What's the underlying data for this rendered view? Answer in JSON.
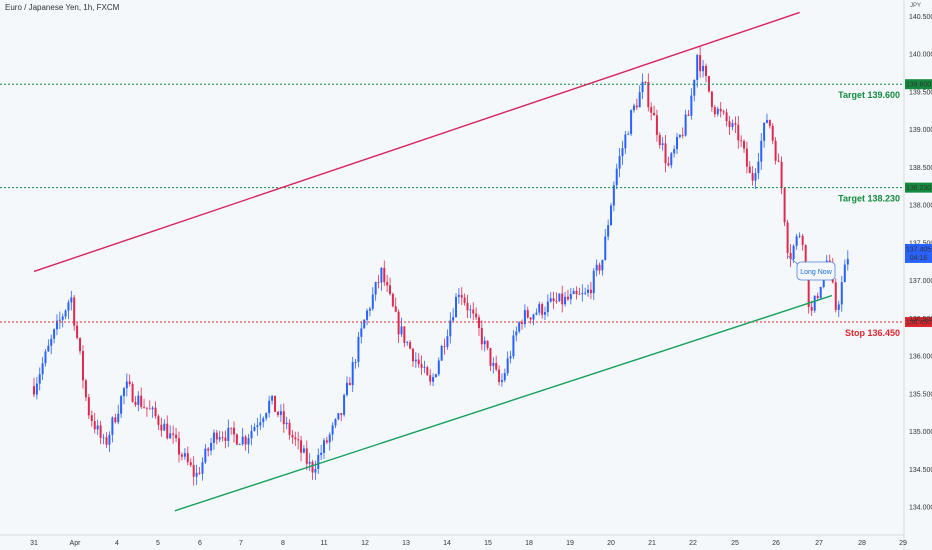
{
  "header": {
    "title": "Euro / Japanese Yen, 1h, FXCM",
    "currency": "JPY"
  },
  "chart_data": {
    "type": "candlestick",
    "y_axis": {
      "ticks": [
        "140.500",
        "140.000",
        "139.500",
        "139.000",
        "138.500",
        "138.000",
        "137.500",
        "137.000",
        "136.500",
        "136.000",
        "135.500",
        "135.000",
        "134.500",
        "134.000"
      ],
      "range": [
        133.9,
        140.65
      ]
    },
    "x_axis": {
      "ticks": [
        "31",
        "Apr",
        "4",
        "5",
        "6",
        "7",
        "8",
        "11",
        "12",
        "13",
        "14",
        "15",
        "18",
        "19",
        "20",
        "21",
        "22",
        "25",
        "26",
        "27",
        "28",
        "29"
      ]
    },
    "levels": [
      {
        "name": "Target 139.600",
        "price": 139.6,
        "tag": "139.600",
        "color": "#138a3d",
        "style": "dotted"
      },
      {
        "name": "Target 138.230",
        "price": 138.23,
        "tag": "138.230",
        "color": "#138a3d",
        "style": "dotted"
      },
      {
        "name": "Stop 136.450",
        "price": 136.45,
        "tag": "136.450",
        "color": "#e0262f",
        "style": "dotted"
      }
    ],
    "current_price": {
      "value": "137.405",
      "countdown": "04:16",
      "color": "#2962ff"
    },
    "trendlines": [
      {
        "name": "upper-channel-line",
        "color": "#d6245e",
        "from": {
          "x": 0.0,
          "y": 137.12
        },
        "to": {
          "x": 18.55,
          "y": 140.55
        }
      },
      {
        "name": "lower-channel-line",
        "color": "#16a05a",
        "from": {
          "x": 3.4,
          "y": 133.95
        },
        "to": {
          "x": 19.3,
          "y": 136.8
        }
      }
    ],
    "annotation": {
      "text": "Long Now"
    },
    "key_points": [
      {
        "x": 0,
        "y": 135.6
      },
      {
        "x": 0.5,
        "y": 136.3
      },
      {
        "x": 0.9,
        "y": 136.8
      },
      {
        "x": 1.3,
        "y": 135.3
      },
      {
        "x": 1.7,
        "y": 134.8
      },
      {
        "x": 2.2,
        "y": 135.6
      },
      {
        "x": 3.1,
        "y": 135.1
      },
      {
        "x": 3.9,
        "y": 134.4
      },
      {
        "x": 4.4,
        "y": 135.0
      },
      {
        "x": 5.1,
        "y": 134.9
      },
      {
        "x": 5.7,
        "y": 135.4
      },
      {
        "x": 6.7,
        "y": 134.5
      },
      {
        "x": 7.4,
        "y": 135.2
      },
      {
        "x": 8.0,
        "y": 136.5
      },
      {
        "x": 8.4,
        "y": 137.1
      },
      {
        "x": 8.8,
        "y": 136.4
      },
      {
        "x": 9.6,
        "y": 135.6
      },
      {
        "x": 10.3,
        "y": 136.9
      },
      {
        "x": 10.8,
        "y": 136.3
      },
      {
        "x": 11.3,
        "y": 135.6
      },
      {
        "x": 11.8,
        "y": 136.5
      },
      {
        "x": 12.6,
        "y": 136.7
      },
      {
        "x": 13.4,
        "y": 136.8
      },
      {
        "x": 13.8,
        "y": 137.3
      },
      {
        "x": 14.1,
        "y": 138.4
      },
      {
        "x": 14.5,
        "y": 139.2
      },
      {
        "x": 14.8,
        "y": 139.6
      },
      {
        "x": 15.4,
        "y": 138.5
      },
      {
        "x": 15.9,
        "y": 139.2
      },
      {
        "x": 16.1,
        "y": 140.0
      },
      {
        "x": 16.5,
        "y": 139.3
      },
      {
        "x": 17.1,
        "y": 138.9
      },
      {
        "x": 17.4,
        "y": 138.3
      },
      {
        "x": 17.8,
        "y": 139.2
      },
      {
        "x": 18.1,
        "y": 138.4
      },
      {
        "x": 18.3,
        "y": 137.3
      },
      {
        "x": 18.6,
        "y": 137.7
      },
      {
        "x": 18.8,
        "y": 136.5
      },
      {
        "x": 19.2,
        "y": 137.3
      },
      {
        "x": 19.4,
        "y": 136.6
      },
      {
        "x": 19.7,
        "y": 137.4
      }
    ],
    "bull_color": "#2962ff",
    "bear_color": "#e0294f"
  }
}
